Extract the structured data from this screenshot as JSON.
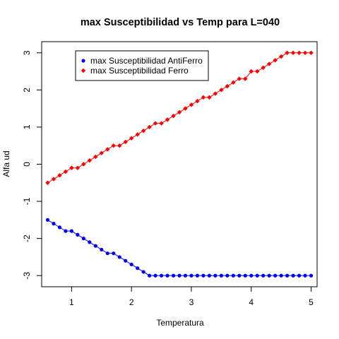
{
  "chart_data": {
    "type": "line",
    "title": "max Susceptibilidad vs Temp para L=040",
    "xlabel": "Temperatura",
    "ylabel": "Alfa ud",
    "xlim": [
      0.5,
      5.1
    ],
    "ylim": [
      -3.3,
      3.3
    ],
    "xticks": [
      1,
      2,
      3,
      4,
      5
    ],
    "yticks": [
      -3,
      -2,
      -1,
      0,
      1,
      2,
      3
    ],
    "legend_position": "top-left",
    "grid": false,
    "x": [
      0.6,
      0.7,
      0.8,
      0.9,
      1.0,
      1.1,
      1.2,
      1.3,
      1.4,
      1.5,
      1.6,
      1.7,
      1.8,
      1.9,
      2.0,
      2.1,
      2.2,
      2.3,
      2.4,
      2.5,
      2.6,
      2.7,
      2.8,
      2.9,
      3.0,
      3.1,
      3.2,
      3.3,
      3.4,
      3.5,
      3.6,
      3.7,
      3.8,
      3.9,
      4.0,
      4.1,
      4.2,
      4.3,
      4.4,
      4.5,
      4.6,
      4.7,
      4.8,
      4.9,
      5.0
    ],
    "series": [
      {
        "name": "max Susceptibilidad AntiFerro",
        "color": "#0000ff",
        "marker": "circle",
        "values": [
          -1.5,
          -1.6,
          -1.7,
          -1.8,
          -1.8,
          -1.9,
          -2.0,
          -2.1,
          -2.2,
          -2.3,
          -2.4,
          -2.4,
          -2.5,
          -2.6,
          -2.7,
          -2.8,
          -2.9,
          -3.0,
          -3.0,
          -3.0,
          -3.0,
          -3.0,
          -3.0,
          -3.0,
          -3.0,
          -3.0,
          -3.0,
          -3.0,
          -3.0,
          -3.0,
          -3.0,
          -3.0,
          -3.0,
          -3.0,
          -3.0,
          -3.0,
          -3.0,
          -3.0,
          -3.0,
          -3.0,
          -3.0,
          -3.0,
          -3.0,
          -3.0,
          -3.0
        ]
      },
      {
        "name": "max Susceptibilidad Ferro",
        "color": "#ff0000",
        "marker": "diamond",
        "values": [
          -0.5,
          -0.4,
          -0.3,
          -0.2,
          -0.1,
          -0.1,
          0.0,
          0.1,
          0.2,
          0.3,
          0.4,
          0.5,
          0.5,
          0.6,
          0.7,
          0.8,
          0.9,
          1.0,
          1.1,
          1.1,
          1.2,
          1.3,
          1.4,
          1.5,
          1.6,
          1.7,
          1.8,
          1.8,
          1.9,
          2.0,
          2.1,
          2.2,
          2.3,
          2.3,
          2.5,
          2.5,
          2.6,
          2.7,
          2.8,
          2.9,
          3.0,
          3.0,
          3.0,
          3.0,
          3.0
        ]
      }
    ]
  }
}
